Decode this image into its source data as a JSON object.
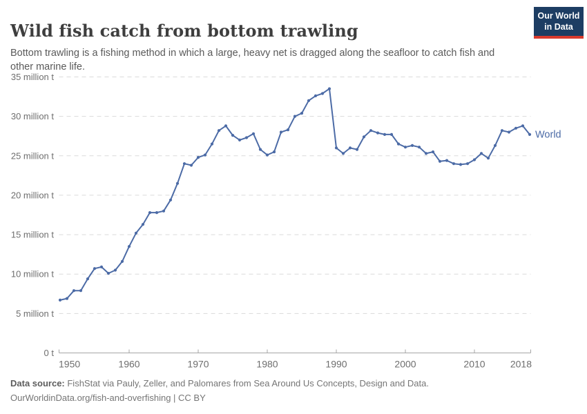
{
  "header": {
    "title": "Wild fish catch from bottom trawling",
    "subtitle": "Bottom trawling is a fishing method in which a large, heavy net is dragged along the seafloor to catch fish and other marine life.",
    "logo": {
      "line1": "Our World",
      "line2": "in Data"
    }
  },
  "chart_data": {
    "type": "line",
    "title": "Wild fish catch from bottom trawling",
    "series": [
      {
        "name": "World",
        "x": [
          1950,
          1951,
          1952,
          1953,
          1954,
          1955,
          1956,
          1957,
          1958,
          1959,
          1960,
          1961,
          1962,
          1963,
          1964,
          1965,
          1966,
          1967,
          1968,
          1969,
          1970,
          1971,
          1972,
          1973,
          1974,
          1975,
          1976,
          1977,
          1978,
          1979,
          1980,
          1981,
          1982,
          1983,
          1984,
          1985,
          1986,
          1987,
          1988,
          1989,
          1990,
          1991,
          1992,
          1993,
          1994,
          1995,
          1996,
          1997,
          1998,
          1999,
          2000,
          2001,
          2002,
          2003,
          2004,
          2005,
          2006,
          2007,
          2008,
          2009,
          2010,
          2011,
          2012,
          2013,
          2014,
          2015,
          2016,
          2017,
          2018
        ],
        "values": [
          6.7,
          6.9,
          7.9,
          7.9,
          9.4,
          10.7,
          10.9,
          10.1,
          10.5,
          11.6,
          13.5,
          15.2,
          16.3,
          17.8,
          17.8,
          18.0,
          19.4,
          21.5,
          24.0,
          23.8,
          24.8,
          25.1,
          26.5,
          28.2,
          28.8,
          27.6,
          27.0,
          27.3,
          27.8,
          25.8,
          25.1,
          25.5,
          28.0,
          28.3,
          30.0,
          30.4,
          32.0,
          32.6,
          32.9,
          33.5,
          26.0,
          25.3,
          26.0,
          25.8,
          27.4,
          28.2,
          27.9,
          27.7,
          27.7,
          26.5,
          26.1,
          26.3,
          26.1,
          25.3,
          25.5,
          24.3,
          24.4,
          24.0,
          23.9,
          24.0,
          24.5,
          25.3,
          24.7,
          26.3,
          28.2,
          28.0,
          28.5,
          28.8,
          27.7
        ]
      }
    ],
    "unit": "million t",
    "ylim": [
      0,
      35
    ],
    "ytick_step": 5,
    "ytick_labels": [
      "0 t",
      "5 million t",
      "10 million t",
      "15 million t",
      "20 million t",
      "25 million t",
      "30 million t",
      "35 million t"
    ],
    "xticks": [
      1950,
      1960,
      1970,
      1980,
      1990,
      2000,
      2010,
      2018
    ],
    "grid": "horizontal-dashed",
    "legend_position": "end-of-line"
  },
  "footer": {
    "datasource_label": "Data source:",
    "datasource_text": " FishStat via Pauly, Zeller, and Palomares from Sea Around Us Concepts, Design and Data.",
    "link_text": "OurWorldinData.org/fish-and-overfishing",
    "separator": " | ",
    "license": "CC BY"
  },
  "colors": {
    "line": "#4c6ba6",
    "grid": "#dadada",
    "axis": "#a5a5a5",
    "tick_text": "#6e6e6e",
    "logo_bg": "#1d3d63",
    "logo_red": "#d93a2d"
  }
}
